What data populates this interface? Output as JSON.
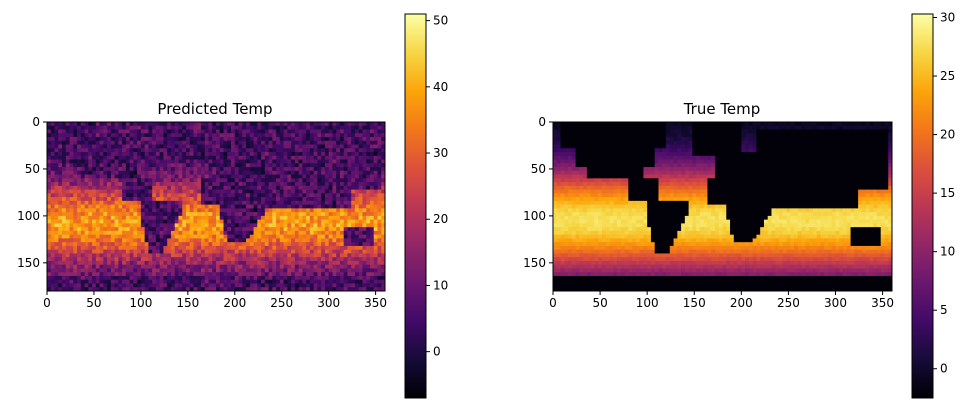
{
  "chart_data": [
    {
      "type": "heatmap",
      "title": "Predicted Temp",
      "xlim": [
        0,
        360
      ],
      "ylim": [
        180,
        0
      ],
      "x_ticks": [
        0,
        50,
        100,
        150,
        200,
        250,
        300,
        350
      ],
      "y_ticks": [
        0,
        50,
        100,
        150
      ],
      "colormap": "inferno",
      "colorbar": {
        "range": [
          -7,
          51
        ],
        "ticks": [
          0,
          10,
          20,
          30,
          40,
          50
        ]
      },
      "field": "noisy sea temperature prediction; brightest (35-45) in tropical band around rows 90-130, dim (0-8) over land and polar regions"
    },
    {
      "type": "heatmap",
      "title": "True Temp",
      "xlim": [
        0,
        360
      ],
      "ylim": [
        180,
        0
      ],
      "x_ticks": [
        0,
        50,
        100,
        150,
        200,
        250,
        300,
        350
      ],
      "y_ticks": [
        0,
        50,
        100,
        150
      ],
      "colormap": "inferno",
      "colorbar": {
        "range": [
          -2.5,
          30.3
        ],
        "ticks": [
          0,
          5,
          10,
          15,
          20,
          25,
          30
        ]
      },
      "field": "smooth sea surface temperature; near 30 at equator (row ~100), falling toward poles; land masked at about -2"
    }
  ]
}
